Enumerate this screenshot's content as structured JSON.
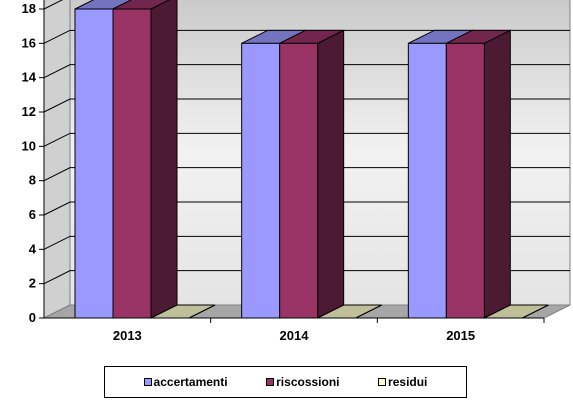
{
  "chart_data": {
    "type": "bar",
    "categories": [
      "2013",
      "2014",
      "2015"
    ],
    "series": [
      {
        "name": "accertamenti",
        "values": [
          18,
          16,
          16
        ],
        "color": "#9999ff"
      },
      {
        "name": "riscossioni",
        "values": [
          18,
          16,
          16
        ],
        "color": "#993366"
      },
      {
        "name": "residui",
        "values": [
          0,
          0,
          0
        ],
        "color": "#ffffcc"
      }
    ],
    "yticks": [
      "0",
      "2",
      "4",
      "6",
      "8",
      "10",
      "12",
      "14",
      "16",
      "18"
    ],
    "ylim": [
      0,
      18
    ],
    "grid": true,
    "style": "3d",
    "legend": "bottom"
  }
}
